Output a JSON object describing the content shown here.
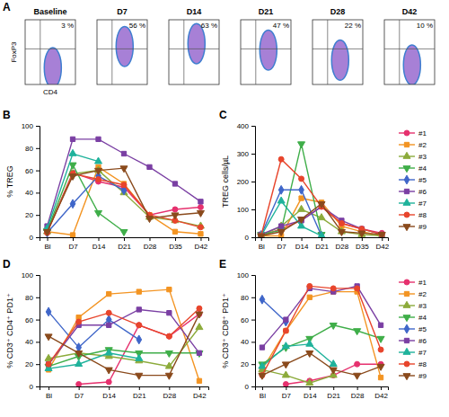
{
  "chart_data": [
    {
      "type": "gate",
      "title": "A",
      "x_label": "CD4",
      "y_label": "FoxP3",
      "categories": [
        "Baseline",
        "D7",
        "D14",
        "D21",
        "D28",
        "D42"
      ],
      "values": [
        3,
        56,
        63,
        47,
        22,
        10
      ],
      "value_labels": [
        "3 %",
        "56 %",
        "63 %",
        "47 %",
        "22 %",
        "10 %"
      ]
    },
    {
      "type": "line",
      "title": "B",
      "y_label": "% TREG",
      "categories": [
        "Bl",
        "D7",
        "D14",
        "D21",
        "D28",
        "D35",
        "D42"
      ],
      "ylim": [
        0,
        100
      ],
      "yticks": [
        0,
        20,
        40,
        60,
        80,
        100
      ],
      "series": [
        {
          "color": "#e6316e",
          "marker": "circle",
          "values": [
            5,
            58,
            50,
            45,
            20,
            25,
            27
          ]
        },
        {
          "color": "#f39422",
          "marker": "square",
          "values": [
            5,
            2,
            63,
            48,
            20,
            5,
            3
          ]
        },
        {
          "color": "#8cab3b",
          "marker": "triangle-up",
          "values": [
            5,
            57,
            60,
            40,
            18,
            15,
            10
          ]
        },
        {
          "color": "#3fae49",
          "marker": "triangle-down",
          "values": [
            6,
            65,
            22,
            5,
            null,
            null,
            null
          ]
        },
        {
          "color": "#3f66c9",
          "marker": "diamond",
          "values": [
            4,
            30,
            55,
            42,
            null,
            null,
            null
          ]
        },
        {
          "color": "#7a3fa3",
          "marker": "square",
          "values": [
            10,
            88,
            88,
            75,
            63,
            48,
            32
          ]
        },
        {
          "color": "#1fb29b",
          "marker": "triangle-up",
          "values": [
            8,
            75,
            68,
            null,
            null,
            null,
            null
          ]
        },
        {
          "color": "#e8452c",
          "marker": "circle",
          "values": [
            4,
            57,
            52,
            47,
            20,
            15,
            9
          ]
        },
        {
          "color": "#8a4a1c",
          "marker": "triangle-down",
          "values": [
            5,
            55,
            60,
            62,
            17,
            20,
            22
          ]
        }
      ]
    },
    {
      "type": "line",
      "title": "C",
      "y_label": "TREG cells/µL",
      "legend": "right",
      "categories": [
        "Bl",
        "D7",
        "D14",
        "D21",
        "D28",
        "D35",
        "D42"
      ],
      "ylim": [
        0,
        400
      ],
      "yticks": [
        0,
        100,
        200,
        300,
        400
      ],
      "series": [
        {
          "name": "#1",
          "color": "#e6316e",
          "marker": "circle",
          "values": [
            5,
            30,
            60,
            110,
            50,
            30,
            15
          ]
        },
        {
          "name": "#2",
          "color": "#f39422",
          "marker": "square",
          "values": [
            5,
            5,
            140,
            125,
            40,
            20,
            5
          ]
        },
        {
          "name": "#3",
          "color": "#8cab3b",
          "marker": "triangle-up",
          "values": [
            5,
            40,
            100,
            70,
            20,
            10,
            5
          ]
        },
        {
          "name": "#4",
          "color": "#3fae49",
          "marker": "triangle-down",
          "values": [
            10,
            25,
            335,
            10,
            null,
            null,
            null
          ]
        },
        {
          "name": "#5",
          "color": "#3f66c9",
          "marker": "diamond",
          "values": [
            8,
            170,
            170,
            5,
            null,
            null,
            null
          ]
        },
        {
          "name": "#6",
          "color": "#7a3fa3",
          "marker": "square",
          "values": [
            10,
            40,
            60,
            110,
            60,
            30,
            10
          ]
        },
        {
          "name": "#7",
          "color": "#1fb29b",
          "marker": "triangle-up",
          "values": [
            5,
            130,
            40,
            5,
            null,
            null,
            null
          ]
        },
        {
          "name": "#8",
          "color": "#e8452c",
          "marker": "circle",
          "values": [
            5,
            280,
            210,
            110,
            50,
            30,
            10
          ]
        },
        {
          "name": "#9",
          "color": "#8a4a1c",
          "marker": "triangle-down",
          "values": [
            5,
            20,
            65,
            120,
            20,
            15,
            10
          ]
        }
      ]
    },
    {
      "type": "line",
      "title": "D",
      "y_label": "% CD3⁺ CD4⁺ PD1⁺",
      "categories": [
        "Bl",
        "D7",
        "D14",
        "D21",
        "D28",
        "D42"
      ],
      "ylim": [
        0,
        100
      ],
      "yticks": [
        0,
        20,
        40,
        60,
        80,
        100
      ],
      "series": [
        {
          "color": "#e6316e",
          "marker": "circle",
          "values": [
            null,
            2,
            4,
            55,
            45,
            65
          ]
        },
        {
          "color": "#f39422",
          "marker": "square",
          "values": [
            15,
            62,
            83,
            85,
            87,
            5
          ]
        },
        {
          "color": "#8cab3b",
          "marker": "triangle-up",
          "values": [
            25,
            30,
            27,
            23,
            18,
            53
          ]
        },
        {
          "color": "#3fae49",
          "marker": "triangle-down",
          "values": [
            18,
            27,
            33,
            30,
            30,
            30
          ]
        },
        {
          "color": "#3f66c9",
          "marker": "diamond",
          "values": [
            67,
            35,
            60,
            42,
            null,
            null
          ]
        },
        {
          "color": "#7a3fa3",
          "marker": "square",
          "values": [
            20,
            55,
            55,
            69,
            66,
            30
          ]
        },
        {
          "color": "#1fb29b",
          "marker": "triangle-up",
          "values": [
            16,
            20,
            30,
            25,
            null,
            null
          ]
        },
        {
          "color": "#e8452c",
          "marker": "circle",
          "values": [
            20,
            58,
            66,
            55,
            45,
            70
          ]
        },
        {
          "color": "#8a4a1c",
          "marker": "triangle-down",
          "values": [
            45,
            30,
            15,
            10,
            10,
            65
          ]
        }
      ]
    },
    {
      "type": "line",
      "title": "E",
      "y_label": "% CD3⁺ CD8⁺ PD1⁺",
      "legend": "right",
      "categories": [
        "Bl",
        "D7",
        "D14",
        "D21",
        "D28",
        "D42"
      ],
      "ylim": [
        0,
        100
      ],
      "yticks": [
        0,
        20,
        40,
        60,
        80,
        100
      ],
      "series": [
        {
          "name": "#1",
          "color": "#e6316e",
          "marker": "circle",
          "values": [
            null,
            2,
            5,
            10,
            20,
            20
          ]
        },
        {
          "name": "#2",
          "color": "#f39422",
          "marker": "square",
          "values": [
            15,
            50,
            80,
            85,
            85,
            8
          ]
        },
        {
          "name": "#3",
          "color": "#8cab3b",
          "marker": "triangle-up",
          "values": [
            15,
            10,
            3,
            10,
            null,
            null
          ]
        },
        {
          "name": "#4",
          "color": "#3fae49",
          "marker": "triangle-down",
          "values": [
            20,
            35,
            43,
            55,
            50,
            43
          ]
        },
        {
          "name": "#5",
          "color": "#3f66c9",
          "marker": "diamond",
          "values": [
            78,
            58,
            null,
            null,
            null,
            null
          ]
        },
        {
          "name": "#6",
          "color": "#7a3fa3",
          "marker": "square",
          "values": [
            35,
            60,
            88,
            85,
            90,
            55
          ]
        },
        {
          "name": "#7",
          "color": "#1fb29b",
          "marker": "triangle-up",
          "values": [
            18,
            36,
            38,
            20,
            null,
            null
          ]
        },
        {
          "name": "#8",
          "color": "#e8452c",
          "marker": "circle",
          "values": [
            10,
            50,
            90,
            88,
            88,
            33
          ]
        },
        {
          "name": "#9",
          "color": "#8a4a1c",
          "marker": "triangle-down",
          "values": [
            10,
            20,
            30,
            15,
            10,
            18
          ]
        }
      ]
    }
  ]
}
